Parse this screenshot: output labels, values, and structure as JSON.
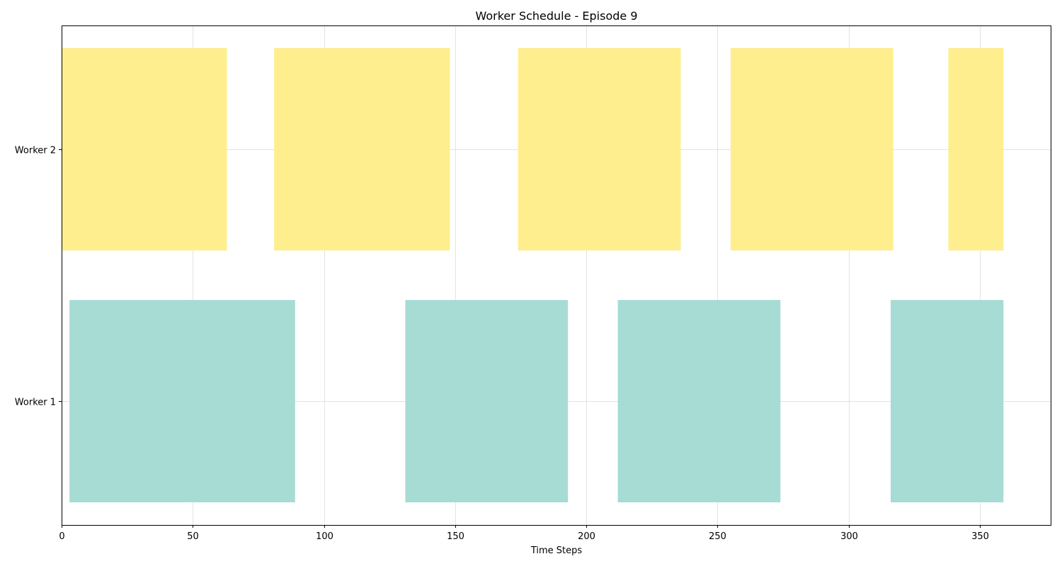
{
  "chart_data": {
    "type": "gantt",
    "title": "Worker Schedule - Episode 9",
    "xlabel": "Time Steps",
    "ylabel": "",
    "xlim": [
      0,
      377
    ],
    "x_ticks": [
      0,
      50,
      100,
      150,
      200,
      250,
      300,
      350
    ],
    "grid": true,
    "rows": [
      {
        "label": "Worker 1",
        "color": "#a6dcd4",
        "intervals": [
          [
            3,
            89
          ],
          [
            131,
            193
          ],
          [
            212,
            274
          ],
          [
            316,
            359
          ]
        ]
      },
      {
        "label": "Worker 2",
        "color": "#feee8d",
        "intervals": [
          [
            0,
            63
          ],
          [
            81,
            148
          ],
          [
            174,
            236
          ],
          [
            255,
            317
          ],
          [
            338,
            359
          ]
        ]
      }
    ]
  }
}
